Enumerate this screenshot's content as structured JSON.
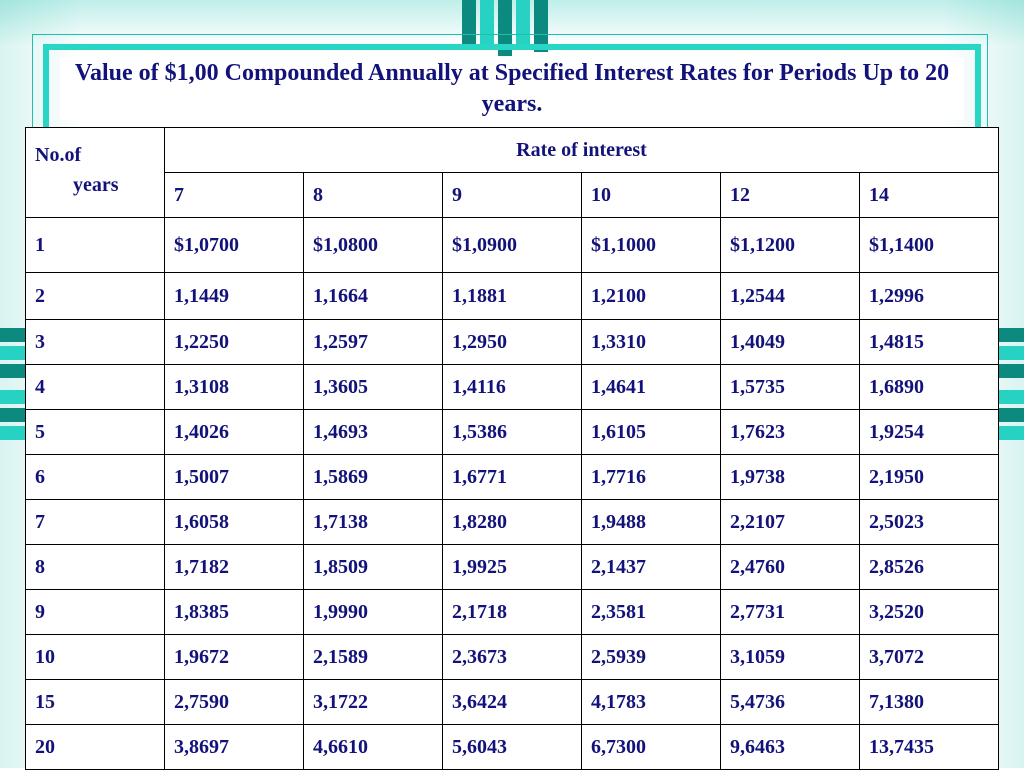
{
  "title": "Value of $1,00 Compounded Annually at Specified Interest Rates for Periods Up to 20 years.",
  "header": {
    "years_label_line1": "No.of",
    "years_label_line2": "years",
    "rate_label": "Rate of interest",
    "rates": [
      "7",
      "8",
      "9",
      "10",
      "12",
      "14"
    ]
  },
  "rows": [
    {
      "years": "1",
      "values": [
        "$1,0700",
        "$1,0800",
        "$1,0900",
        "$1,1000",
        "$1,1200",
        "$1,1400"
      ]
    },
    {
      "years": "2",
      "values": [
        "1,1449",
        "1,1664",
        "1,1881",
        "1,2100",
        "1,2544",
        "1,2996"
      ]
    },
    {
      "years": "3",
      "values": [
        "1,2250",
        "1,2597",
        "1,2950",
        "1,3310",
        "1,4049",
        "1,4815"
      ]
    },
    {
      "years": "4",
      "values": [
        "1,3108",
        "1,3605",
        "1,4116",
        "1,4641",
        "1,5735",
        "1,6890"
      ]
    },
    {
      "years": "5",
      "values": [
        "1,4026",
        "1,4693",
        "1,5386",
        "1,6105",
        "1,7623",
        "1,9254"
      ]
    },
    {
      "years": "6",
      "values": [
        "1,5007",
        "1,5869",
        "1,6771",
        "1,7716",
        "1,9738",
        "2,1950"
      ]
    },
    {
      "years": "7",
      "values": [
        "1,6058",
        "1,7138",
        "1,8280",
        "1,9488",
        "2,2107",
        "2,5023"
      ]
    },
    {
      "years": "8",
      "values": [
        "1,7182",
        "1,8509",
        "1,9925",
        "2,1437",
        "2,4760",
        "2,8526"
      ]
    },
    {
      "years": "9",
      "values": [
        "1,8385",
        "1,9990",
        "2,1718",
        "2,3581",
        "2,7731",
        "3,2520"
      ]
    },
    {
      "years": "10",
      "values": [
        "1,9672",
        "2,1589",
        "2,3673",
        "2,5939",
        "3,1059",
        "3,7072"
      ]
    },
    {
      "years": "15",
      "values": [
        "2,7590",
        "3,1722",
        "3,6424",
        "4,1783",
        "5,4736",
        "7,1380"
      ]
    },
    {
      "years": "20",
      "values": [
        "3,8697",
        "4,6610",
        "5,6043",
        "6,7300",
        "9,6463",
        "13,7435"
      ]
    }
  ],
  "colors": {
    "text": "#12127a",
    "accent": "#28d6c6",
    "accent_dark": "#0d8a80"
  }
}
